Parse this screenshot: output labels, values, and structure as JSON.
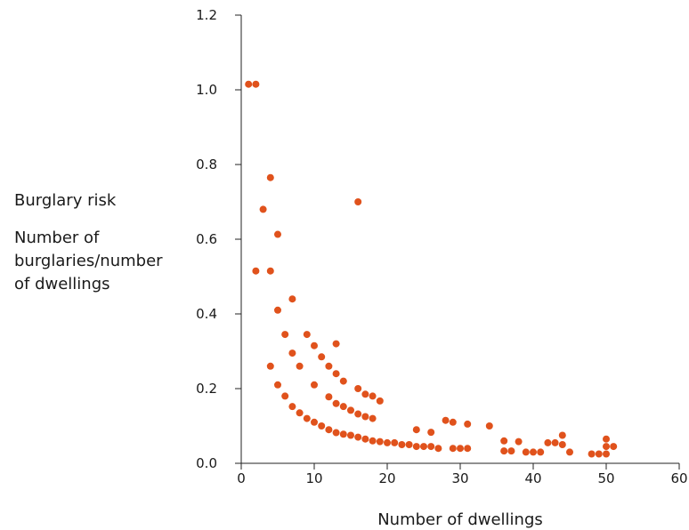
{
  "chart_data": {
    "type": "scatter",
    "xlabel": "Number of dwellings",
    "ylabel_title": "Burglary risk",
    "ylabel_lines": [
      "Number of",
      "burglaries/number",
      "of dwellings"
    ],
    "xlim": [
      0,
      60
    ],
    "ylim": [
      0,
      1.2
    ],
    "x_ticks": [
      0,
      10,
      20,
      30,
      40,
      50,
      60
    ],
    "y_ticks": [
      "0.0",
      "0.2",
      "0.4",
      "0.6",
      "0.8",
      "1.0",
      "1.2"
    ],
    "grid": false,
    "marker_color": "#e0521c",
    "points": [
      [
        1,
        1.015
      ],
      [
        2,
        1.015
      ],
      [
        4,
        0.765
      ],
      [
        3,
        0.68
      ],
      [
        16,
        0.7
      ],
      [
        5,
        0.613
      ],
      [
        2,
        0.515
      ],
      [
        4,
        0.515
      ],
      [
        7,
        0.44
      ],
      [
        5,
        0.41
      ],
      [
        6,
        0.345
      ],
      [
        9,
        0.345
      ],
      [
        10,
        0.315
      ],
      [
        13,
        0.32
      ],
      [
        7,
        0.295
      ],
      [
        11,
        0.285
      ],
      [
        4,
        0.26
      ],
      [
        8,
        0.26
      ],
      [
        12,
        0.26
      ],
      [
        13,
        0.24
      ],
      [
        14,
        0.22
      ],
      [
        5,
        0.21
      ],
      [
        10,
        0.21
      ],
      [
        16,
        0.2
      ],
      [
        17,
        0.185
      ],
      [
        18,
        0.18
      ],
      [
        19,
        0.167
      ],
      [
        12,
        0.178
      ],
      [
        13,
        0.16
      ],
      [
        6,
        0.18
      ],
      [
        7,
        0.152
      ],
      [
        14,
        0.152
      ],
      [
        15,
        0.142
      ],
      [
        16,
        0.132
      ],
      [
        17,
        0.125
      ],
      [
        18,
        0.12
      ],
      [
        8,
        0.135
      ],
      [
        9,
        0.12
      ],
      [
        10,
        0.11
      ],
      [
        11,
        0.1
      ],
      [
        12,
        0.09
      ],
      [
        13,
        0.082
      ],
      [
        14,
        0.078
      ],
      [
        15,
        0.075
      ],
      [
        16,
        0.07
      ],
      [
        17,
        0.065
      ],
      [
        18,
        0.06
      ],
      [
        19,
        0.058
      ],
      [
        20,
        0.055
      ],
      [
        21,
        0.055
      ],
      [
        22,
        0.05
      ],
      [
        23,
        0.05
      ],
      [
        24,
        0.045
      ],
      [
        25,
        0.045
      ],
      [
        26,
        0.045
      ],
      [
        27,
        0.04
      ],
      [
        24,
        0.09
      ],
      [
        26,
        0.083
      ],
      [
        28,
        0.115
      ],
      [
        29,
        0.11
      ],
      [
        31,
        0.105
      ],
      [
        34,
        0.1
      ],
      [
        29,
        0.04
      ],
      [
        30,
        0.04
      ],
      [
        31,
        0.04
      ],
      [
        36,
        0.06
      ],
      [
        38,
        0.058
      ],
      [
        36,
        0.033
      ],
      [
        37,
        0.033
      ],
      [
        39,
        0.03
      ],
      [
        40,
        0.03
      ],
      [
        41,
        0.03
      ],
      [
        42,
        0.055
      ],
      [
        43,
        0.055
      ],
      [
        44,
        0.075
      ],
      [
        44,
        0.05
      ],
      [
        45,
        0.03
      ],
      [
        48,
        0.025
      ],
      [
        49,
        0.025
      ],
      [
        50,
        0.025
      ],
      [
        50,
        0.065
      ],
      [
        50,
        0.045
      ],
      [
        51,
        0.045
      ]
    ]
  }
}
